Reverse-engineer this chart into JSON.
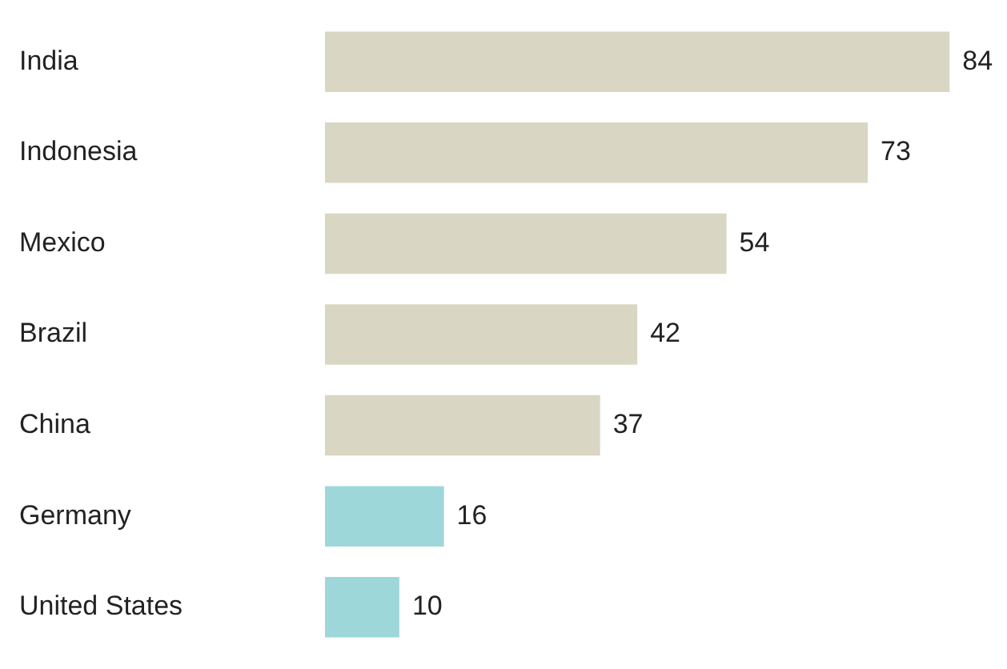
{
  "chart_data": {
    "type": "bar",
    "orientation": "horizontal",
    "categories": [
      "India",
      "Indonesia",
      "Mexico",
      "Brazil",
      "China",
      "Germany",
      "United States"
    ],
    "values": [
      84,
      73,
      54,
      42,
      37,
      16,
      10
    ],
    "colors": [
      "#d9d7c3",
      "#d9d7c3",
      "#d9d7c3",
      "#d9d7c3",
      "#d9d7c3",
      "#9ed7d9",
      "#9ed7d9"
    ],
    "data_labels": true,
    "grid": false,
    "tick_labels": "y"
  }
}
